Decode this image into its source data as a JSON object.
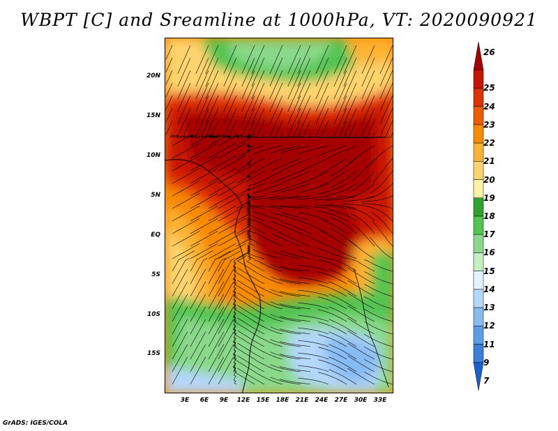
{
  "title": "WBPT [C] and Sreamline at 1000hPa, VT: 2020090921",
  "credit": "GrADS: IGES/COLA",
  "map": {
    "lat_labels": [
      "20N",
      "15N",
      "10N",
      "5N",
      "EQ",
      "5S",
      "10S",
      "15S"
    ],
    "lon_labels": [
      "3E",
      "6E",
      "9E",
      "12E",
      "15E",
      "18E",
      "21E",
      "24E",
      "27E",
      "30E",
      "33E"
    ],
    "lat_range": [
      -20,
      24
    ],
    "lon_range": [
      0,
      35
    ]
  },
  "colorbar": {
    "labels": [
      "26",
      "25",
      "24",
      "23",
      "22",
      "21",
      "20",
      "19",
      "18",
      "17",
      "16",
      "15",
      "14",
      "13",
      "12",
      "11",
      "9",
      "7"
    ],
    "colors": [
      "#a50000",
      "#c81400",
      "#e13000",
      "#f05a00",
      "#f88a00",
      "#fdb231",
      "#fed46e",
      "#fef2a4",
      "#2fa52f",
      "#52c452",
      "#8ad98a",
      "#c3f0c3",
      "#e2f4ff",
      "#b4d7fa",
      "#88bbf2",
      "#5c9de8",
      "#3a7fdc",
      "#1c5fcf"
    ]
  },
  "field_colors": {
    "very_hot": "#a50000",
    "hot": "#c81400",
    "warm": "#e13000",
    "orange": "#f88a00",
    "light_orange": "#fdb231",
    "tan": "#fed46e",
    "green_dark": "#2fa52f",
    "green": "#52c452",
    "green_light": "#8ad98a",
    "blue_light": "#b4d7fa",
    "blue": "#88bbf2"
  }
}
